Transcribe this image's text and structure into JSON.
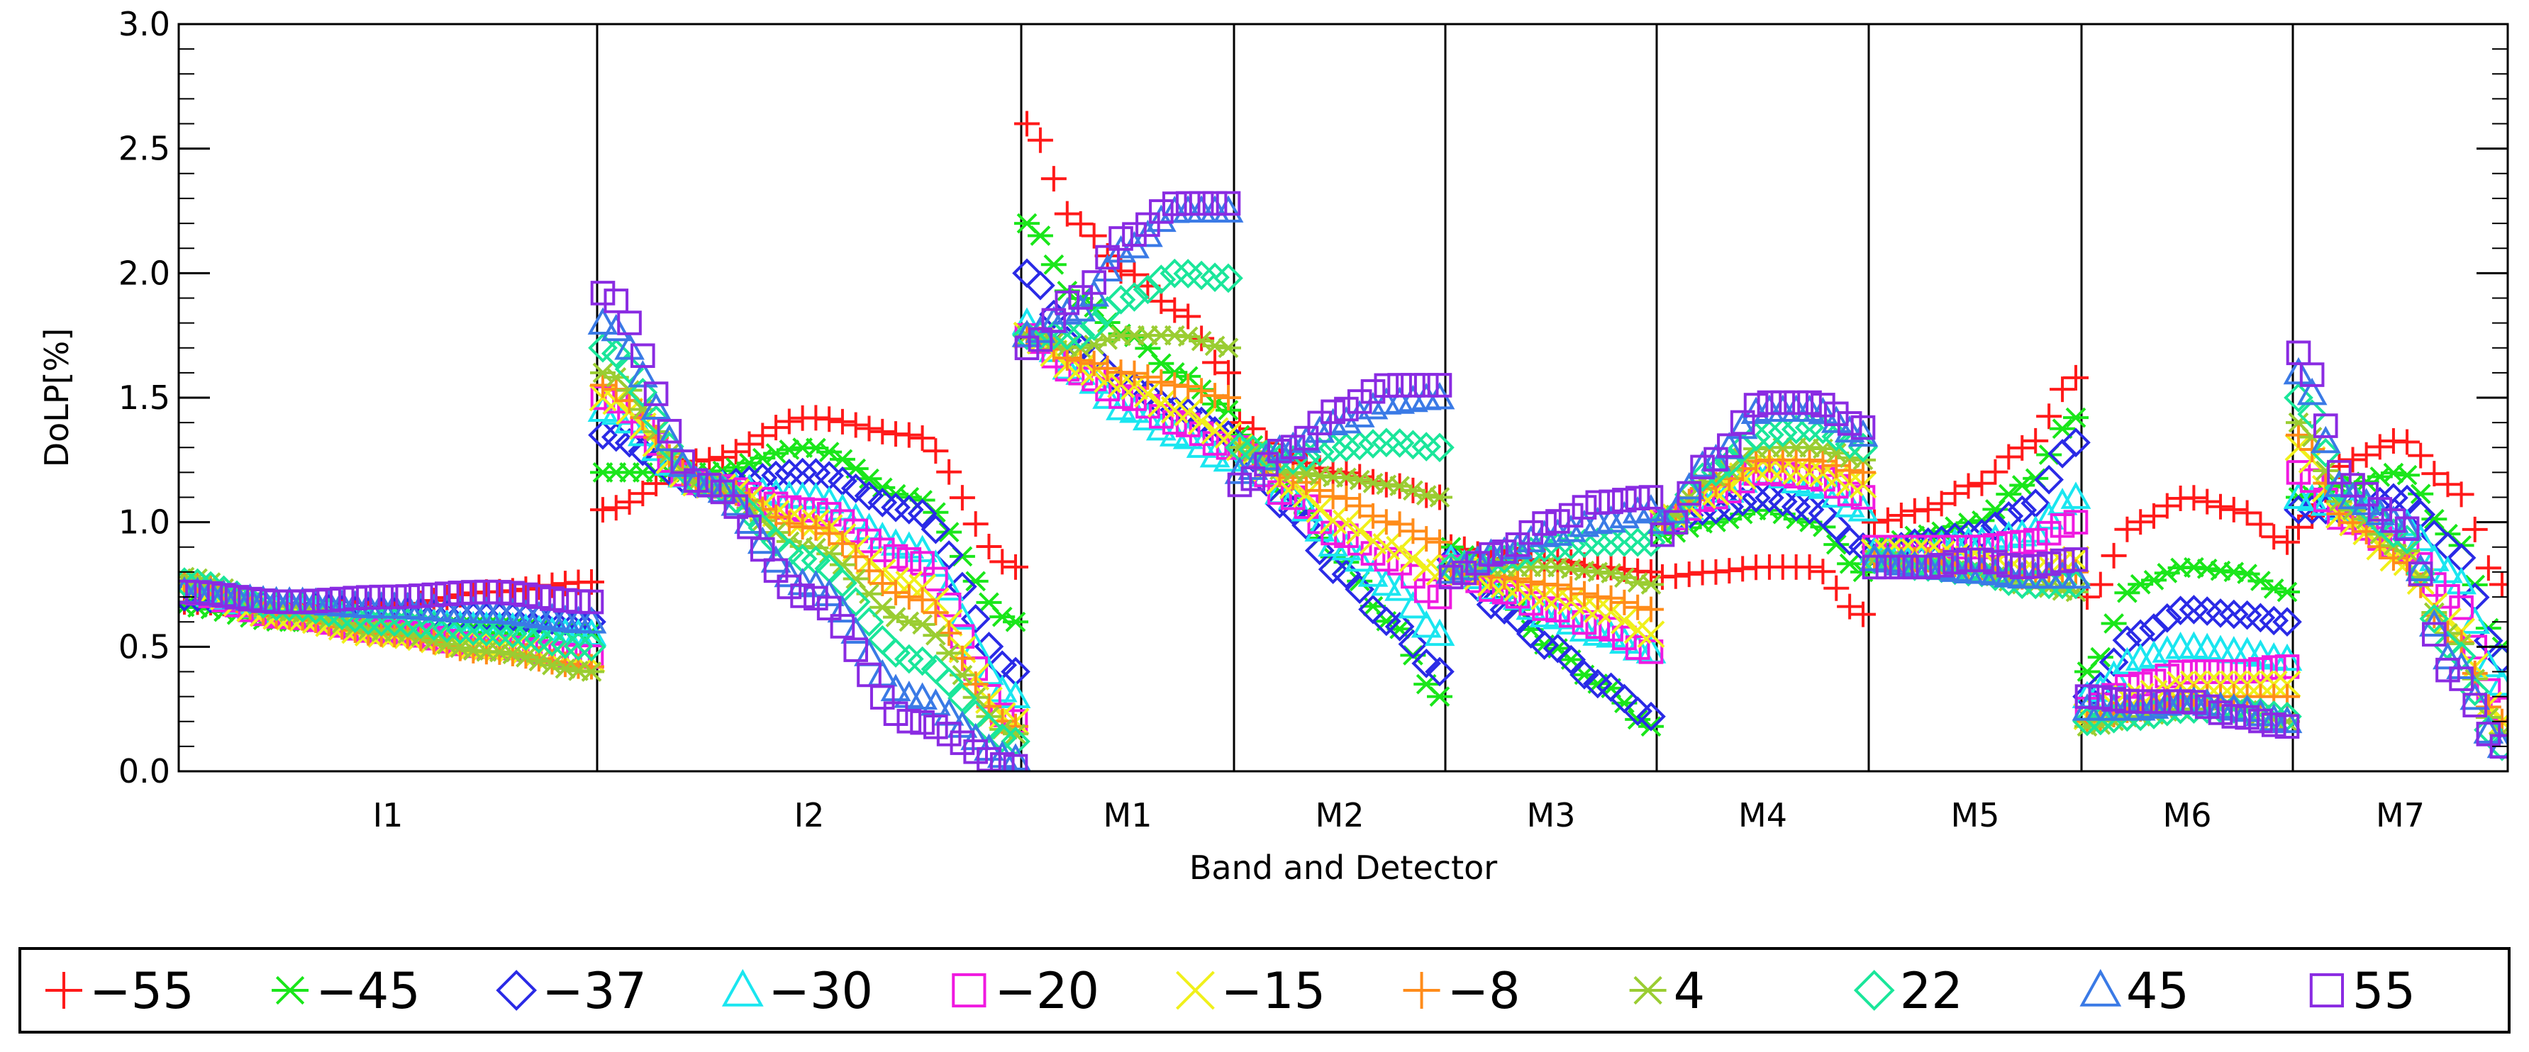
{
  "chart_data": {
    "type": "scatter",
    "title": "",
    "xlabel": "Band and Detector",
    "ylabel": "DoLP[%]",
    "ylim": [
      0.0,
      3.0
    ],
    "yticks": [
      "0.0",
      "0.5",
      "1.0",
      "1.5",
      "2.0",
      "2.5",
      "3.0"
    ],
    "grid": false,
    "legend_position": "bottom",
    "points_per_band_note": "each band spans detector index 0-1 within its panel",
    "bands": [
      {
        "name": "I1",
        "detectors": 32
      },
      {
        "name": "I2",
        "detectors": 32
      },
      {
        "name": "M1",
        "detectors": 16
      },
      {
        "name": "M2",
        "detectors": 16
      },
      {
        "name": "M3",
        "detectors": 16
      },
      {
        "name": "M4",
        "detectors": 16
      },
      {
        "name": "M5",
        "detectors": 16
      },
      {
        "name": "M6",
        "detectors": 16
      },
      {
        "name": "M7",
        "detectors": 16
      }
    ],
    "series": [
      {
        "name": "−55",
        "color": "#ff1a1a",
        "marker": "plus",
        "control": {
          "I1": [
            0.68,
            0.66,
            0.66,
            0.72,
            0.76
          ],
          "I2": [
            1.05,
            1.25,
            1.42,
            1.35,
            0.82
          ],
          "M1": [
            2.6,
            2.2,
            2.0,
            1.85,
            1.6
          ],
          "M2": [
            1.4,
            1.25,
            1.2,
            1.15,
            1.1
          ],
          "M3": [
            0.9,
            0.85,
            0.85,
            0.82,
            0.8
          ],
          "M4": [
            0.78,
            0.8,
            0.82,
            0.82,
            0.63
          ],
          "M5": [
            1.0,
            1.05,
            1.15,
            1.3,
            1.58
          ],
          "M6": [
            0.7,
            1.0,
            1.1,
            1.05,
            0.92
          ],
          "M7": [
            0.98,
            1.25,
            1.33,
            1.15,
            0.75
          ]
        }
      },
      {
        "name": "−45",
        "color": "#1ae61a",
        "marker": "asterisk",
        "control": {
          "I1": [
            0.66,
            0.6,
            0.58,
            0.58,
            0.56
          ],
          "I2": [
            1.2,
            1.2,
            1.3,
            1.1,
            0.6
          ],
          "M1": [
            2.2,
            1.9,
            1.75,
            1.6,
            1.45
          ],
          "M2": [
            1.35,
            1.1,
            0.85,
            0.6,
            0.3
          ],
          "M3": [
            0.9,
            0.7,
            0.5,
            0.35,
            0.18
          ],
          "M4": [
            0.95,
            1.0,
            1.05,
            1.0,
            0.8
          ],
          "M5": [
            0.9,
            0.95,
            1.0,
            1.15,
            1.42
          ],
          "M6": [
            0.4,
            0.75,
            0.82,
            0.8,
            0.72
          ],
          "M7": [
            1.1,
            1.15,
            1.2,
            0.95,
            0.5
          ]
        }
      },
      {
        "name": "−37",
        "color": "#2a2ae6",
        "marker": "diamond",
        "control": {
          "I1": [
            0.7,
            0.66,
            0.64,
            0.62,
            0.6
          ],
          "I2": [
            1.35,
            1.15,
            1.2,
            1.05,
            0.4
          ],
          "M1": [
            2.0,
            1.7,
            1.55,
            1.45,
            1.35
          ],
          "M2": [
            1.3,
            1.05,
            0.8,
            0.6,
            0.4
          ],
          "M3": [
            0.85,
            0.65,
            0.5,
            0.35,
            0.22
          ],
          "M4": [
            1.0,
            1.05,
            1.1,
            1.05,
            0.9
          ],
          "M5": [
            0.88,
            0.92,
            0.95,
            1.05,
            1.32
          ],
          "M6": [
            0.3,
            0.55,
            0.65,
            0.63,
            0.6
          ],
          "M7": [
            1.05,
            1.05,
            1.1,
            0.9,
            0.45
          ]
        }
      },
      {
        "name": "−30",
        "color": "#1ae6f0",
        "marker": "triangle",
        "control": {
          "I1": [
            0.72,
            0.64,
            0.6,
            0.58,
            0.55
          ],
          "I2": [
            1.45,
            1.15,
            1.1,
            0.9,
            0.3
          ],
          "M1": [
            1.8,
            1.6,
            1.45,
            1.35,
            1.25
          ],
          "M2": [
            1.3,
            1.1,
            0.9,
            0.75,
            0.55
          ],
          "M3": [
            0.85,
            0.72,
            0.62,
            0.55,
            0.48
          ],
          "M4": [
            1.0,
            1.1,
            1.2,
            1.15,
            1.05
          ],
          "M5": [
            0.88,
            0.9,
            0.92,
            0.95,
            1.1
          ],
          "M6": [
            0.3,
            0.45,
            0.5,
            0.48,
            0.45
          ],
          "M7": [
            1.1,
            1.05,
            1.0,
            0.8,
            0.35
          ]
        }
      },
      {
        "name": "−20",
        "color": "#f01ae0",
        "marker": "square",
        "control": {
          "I1": [
            0.72,
            0.62,
            0.56,
            0.5,
            0.46
          ],
          "I2": [
            1.5,
            1.15,
            1.05,
            0.85,
            0.2
          ],
          "M1": [
            1.75,
            1.6,
            1.5,
            1.4,
            1.3
          ],
          "M2": [
            1.3,
            1.1,
            0.95,
            0.85,
            0.7
          ],
          "M3": [
            0.82,
            0.72,
            0.65,
            0.58,
            0.48
          ],
          "M4": [
            1.0,
            1.1,
            1.2,
            1.18,
            1.1
          ],
          "M5": [
            0.9,
            0.9,
            0.9,
            0.92,
            1.0
          ],
          "M6": [
            0.25,
            0.35,
            0.4,
            0.4,
            0.42
          ],
          "M7": [
            1.2,
            1.0,
            0.9,
            0.7,
            0.25
          ]
        }
      },
      {
        "name": "−15",
        "color": "#f0f01a",
        "marker": "x",
        "control": {
          "I1": [
            0.74,
            0.62,
            0.55,
            0.5,
            0.45
          ],
          "I2": [
            1.5,
            1.15,
            1.0,
            0.75,
            0.2
          ],
          "M1": [
            1.75,
            1.62,
            1.55,
            1.45,
            1.35
          ],
          "M2": [
            1.3,
            1.15,
            1.0,
            0.9,
            0.8
          ],
          "M3": [
            0.82,
            0.75,
            0.7,
            0.65,
            0.55
          ],
          "M4": [
            1.0,
            1.12,
            1.22,
            1.2,
            1.15
          ],
          "M5": [
            0.88,
            0.88,
            0.85,
            0.8,
            0.85
          ],
          "M6": [
            0.22,
            0.3,
            0.35,
            0.35,
            0.35
          ],
          "M7": [
            1.3,
            1.0,
            0.85,
            0.6,
            0.2
          ]
        }
      },
      {
        "name": "−8",
        "color": "#ff8c1a",
        "marker": "plus",
        "control": {
          "I1": [
            0.76,
            0.62,
            0.55,
            0.48,
            0.42
          ],
          "I2": [
            1.55,
            1.15,
            0.98,
            0.7,
            0.18
          ],
          "M1": [
            1.75,
            1.65,
            1.6,
            1.55,
            1.5
          ],
          "M2": [
            1.3,
            1.18,
            1.1,
            1.0,
            0.92
          ],
          "M3": [
            0.82,
            0.78,
            0.75,
            0.7,
            0.65
          ],
          "M4": [
            1.0,
            1.15,
            1.25,
            1.25,
            1.2
          ],
          "M5": [
            0.85,
            0.85,
            0.82,
            0.78,
            0.8
          ],
          "M6": [
            0.2,
            0.25,
            0.3,
            0.3,
            0.3
          ],
          "M7": [
            1.35,
            1.0,
            0.85,
            0.55,
            0.2
          ]
        }
      },
      {
        "name": "4",
        "color": "#9acd32",
        "marker": "asterisk",
        "control": {
          "I1": [
            0.78,
            0.64,
            0.56,
            0.48,
            0.4
          ],
          "I2": [
            1.6,
            1.15,
            0.9,
            0.6,
            0.15
          ],
          "M1": [
            1.75,
            1.7,
            1.75,
            1.75,
            1.7
          ],
          "M2": [
            1.3,
            1.2,
            1.18,
            1.15,
            1.1
          ],
          "M3": [
            0.82,
            0.82,
            0.82,
            0.8,
            0.75
          ],
          "M4": [
            1.0,
            1.18,
            1.3,
            1.3,
            1.25
          ],
          "M5": [
            0.85,
            0.82,
            0.8,
            0.75,
            0.72
          ],
          "M6": [
            0.18,
            0.22,
            0.25,
            0.25,
            0.2
          ],
          "M7": [
            1.4,
            1.05,
            0.9,
            0.55,
            0.15
          ]
        }
      },
      {
        "name": "22",
        "color": "#1ae69a",
        "marker": "diamond",
        "control": {
          "I1": [
            0.76,
            0.66,
            0.6,
            0.56,
            0.5
          ],
          "I2": [
            1.7,
            1.15,
            0.85,
            0.45,
            0.12
          ],
          "M1": [
            1.75,
            1.75,
            1.9,
            2.0,
            1.98
          ],
          "M2": [
            1.3,
            1.25,
            1.3,
            1.32,
            1.3
          ],
          "M3": [
            0.82,
            0.85,
            0.9,
            0.92,
            0.92
          ],
          "M4": [
            1.0,
            1.2,
            1.35,
            1.38,
            1.3
          ],
          "M5": [
            0.85,
            0.82,
            0.8,
            0.75,
            0.75
          ],
          "M6": [
            0.2,
            0.22,
            0.25,
            0.25,
            0.22
          ],
          "M7": [
            1.5,
            1.1,
            0.95,
            0.5,
            0.1
          ]
        }
      },
      {
        "name": "45",
        "color": "#3a7ae6",
        "marker": "triangle",
        "control": {
          "I1": [
            0.72,
            0.68,
            0.66,
            0.64,
            0.6
          ],
          "I2": [
            1.8,
            1.15,
            0.75,
            0.3,
            0.05
          ],
          "M1": [
            1.75,
            1.85,
            2.1,
            2.25,
            2.25
          ],
          "M2": [
            1.2,
            1.3,
            1.4,
            1.48,
            1.5
          ],
          "M3": [
            0.8,
            0.88,
            0.95,
            1.0,
            1.05
          ],
          "M4": [
            1.0,
            1.25,
            1.45,
            1.45,
            1.35
          ],
          "M5": [
            0.85,
            0.82,
            0.8,
            0.78,
            0.78
          ],
          "M6": [
            0.25,
            0.25,
            0.28,
            0.25,
            0.2
          ],
          "M7": [
            1.6,
            1.1,
            1.0,
            0.45,
            0.1
          ]
        }
      },
      {
        "name": "55",
        "color": "#8a2be2",
        "marker": "square",
        "control": {
          "I1": [
            0.72,
            0.68,
            0.7,
            0.72,
            0.68
          ],
          "I2": [
            1.92,
            1.15,
            0.7,
            0.2,
            0.02
          ],
          "M1": [
            1.7,
            1.9,
            2.15,
            2.28,
            2.28
          ],
          "M2": [
            1.15,
            1.3,
            1.45,
            1.55,
            1.55
          ],
          "M3": [
            0.78,
            0.88,
            1.0,
            1.08,
            1.1
          ],
          "M4": [
            0.95,
            1.25,
            1.48,
            1.48,
            1.38
          ],
          "M5": [
            0.82,
            0.82,
            0.85,
            0.82,
            0.85
          ],
          "M6": [
            0.3,
            0.28,
            0.28,
            0.22,
            0.18
          ],
          "M7": [
            1.68,
            1.15,
            1.0,
            0.4,
            0.1
          ]
        }
      }
    ]
  }
}
